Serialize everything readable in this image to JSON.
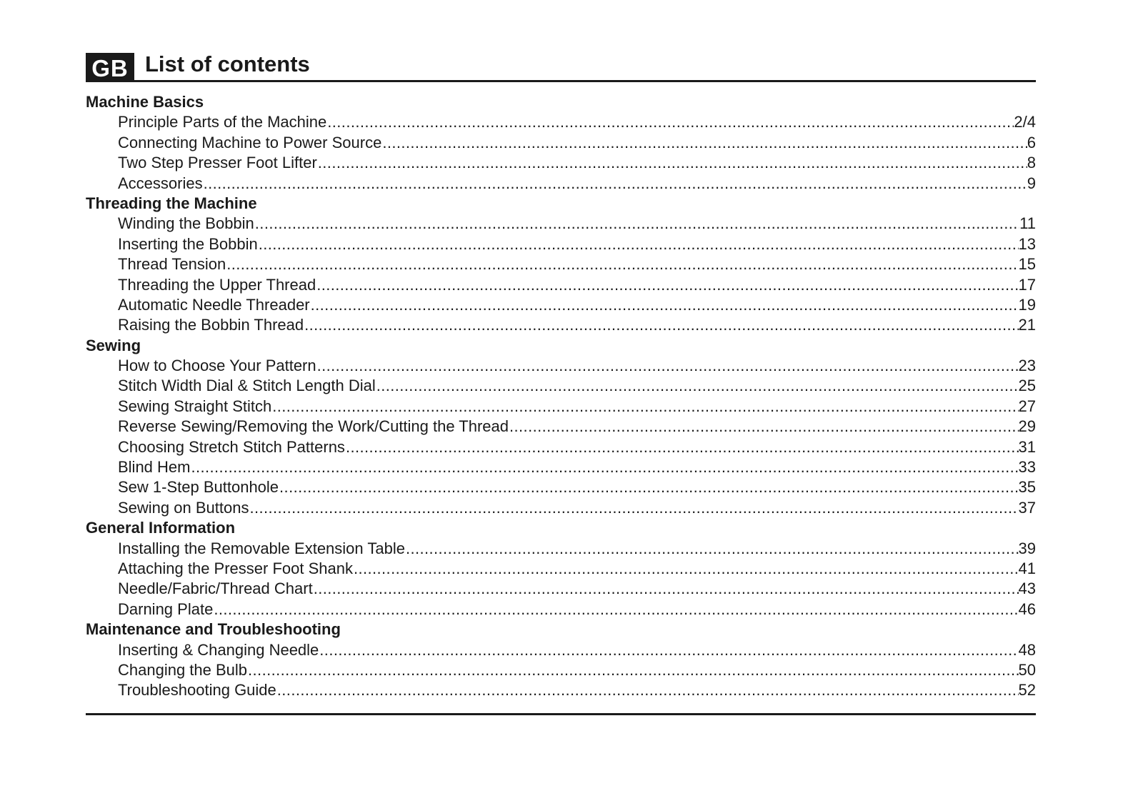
{
  "header": {
    "badge": "GB",
    "title": "List of contents"
  },
  "sections": [
    {
      "title": "Machine Basics",
      "entries": [
        {
          "label": "Principle Parts of the Machine",
          "page": "2/4"
        },
        {
          "label": "Connecting Machine to Power Source",
          "page": "6"
        },
        {
          "label": "Two Step Presser Foot Lifter",
          "page": "8"
        },
        {
          "label": "Accessories",
          "page": "9"
        }
      ]
    },
    {
      "title": "Threading the Machine",
      "entries": [
        {
          "label": "Winding the Bobbin",
          "page": "11"
        },
        {
          "label": "Inserting the Bobbin",
          "page": "13"
        },
        {
          "label": "Thread Tension",
          "page": "15"
        },
        {
          "label": "Threading the Upper Thread",
          "page": "17"
        },
        {
          "label": "Automatic Needle Threader",
          "page": "19"
        },
        {
          "label": "Raising the Bobbin Thread",
          "page": "21"
        }
      ]
    },
    {
      "title": "Sewing",
      "entries": [
        {
          "label": "How to Choose Your Pattern",
          "page": "23"
        },
        {
          "label": "Stitch Width Dial & Stitch Length Dial",
          "page": "25"
        },
        {
          "label": "Sewing Straight Stitch",
          "page": "27"
        },
        {
          "label": "Reverse Sewing/Removing the Work/Cutting the Thread",
          "page": "29"
        },
        {
          "label": "Choosing Stretch Stitch Patterns",
          "page": "31"
        },
        {
          "label": "Blind Hem",
          "page": "33"
        },
        {
          "label": "Sew 1-Step Buttonhole",
          "page": "35"
        },
        {
          "label": "Sewing on Buttons",
          "page": "37"
        }
      ]
    },
    {
      "title": "General Information",
      "entries": [
        {
          "label": "Installing the Removable Extension Table",
          "page": "39"
        },
        {
          "label": "Attaching the Presser Foot Shank",
          "page": "41"
        },
        {
          "label": "Needle/Fabric/Thread Chart",
          "page": "43"
        },
        {
          "label": "Darning Plate",
          "page": "46"
        }
      ]
    },
    {
      "title": "Maintenance and Troubleshooting",
      "entries": [
        {
          "label": "Inserting & Changing Needle",
          "page": "48"
        },
        {
          "label": "Changing the Bulb",
          "page": "50"
        },
        {
          "label": "Troubleshooting Guide",
          "page": "52"
        }
      ]
    }
  ]
}
